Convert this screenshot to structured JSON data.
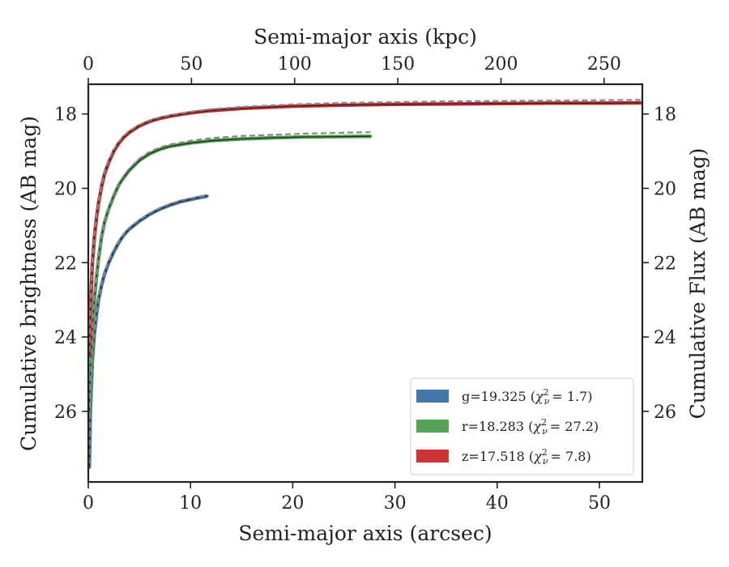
{
  "chart_data": {
    "type": "line",
    "xlabel_bottom": "Semi-major axis (arcsec)",
    "xlabel_top": "Semi-major axis (kpc)",
    "ylabel_left": "Cumulative brightness (AB mag)",
    "ylabel_right": "Cumulative Flux (AB mag)",
    "xlim": [
      0,
      54.2
    ],
    "ylim": [
      27.9,
      17.2
    ],
    "top_xlim": [
      0,
      268.5
    ],
    "x_ticks": [
      0,
      10,
      20,
      30,
      40,
      50
    ],
    "y_ticks": [
      18,
      20,
      22,
      24,
      26
    ],
    "top_ticks": [
      0,
      50,
      100,
      150,
      200,
      250
    ],
    "x_tick_labels": [
      "0",
      "10",
      "20",
      "30",
      "40",
      "50"
    ],
    "y_tick_labels": [
      "18",
      "20",
      "22",
      "24",
      "26"
    ],
    "top_tick_labels": [
      "0",
      "50",
      "100",
      "150",
      "200",
      "250"
    ],
    "legend_position": "lower-right",
    "legend": [
      {
        "prefix": "g=19.325 (",
        "chi": "1.7",
        "suffix": ")",
        "color": "#4477aa"
      },
      {
        "prefix": "r=18.283 (",
        "chi": "27.2",
        "suffix": ")",
        "color": "#55a355"
      },
      {
        "prefix": "z=17.518 (",
        "chi": "7.8",
        "suffix": ")",
        "color": "#cc3333"
      }
    ],
    "series": [
      {
        "color": "#4477aa",
        "x": [
          0.1,
          0.2,
          0.4,
          0.6,
          0.8,
          1.0,
          1.3,
          1.6,
          2.0,
          2.5,
          3.0,
          3.5,
          4.0,
          5.0,
          6.0,
          7.0,
          8.0,
          9.0,
          10.0,
          11.0,
          11.6
        ],
        "y": [
          27.5,
          26.0,
          24.6,
          23.9,
          23.4,
          23.0,
          22.6,
          22.3,
          22.0,
          21.7,
          21.45,
          21.25,
          21.1,
          20.88,
          20.7,
          20.56,
          20.45,
          20.36,
          20.3,
          20.24,
          20.21
        ],
        "model_x": [
          0.1,
          0.2,
          0.4,
          0.6,
          0.8,
          1.0,
          1.3,
          1.6,
          2.0,
          2.5,
          3.0,
          3.5,
          4.0,
          5.0,
          6.0,
          7.0,
          8.0,
          9.0,
          10.0,
          11.0,
          11.6
        ],
        "model_y": [
          27.4,
          25.9,
          24.5,
          23.85,
          23.35,
          22.95,
          22.55,
          22.25,
          21.95,
          21.65,
          21.42,
          21.22,
          21.06,
          20.85,
          20.67,
          20.53,
          20.42,
          20.33,
          20.27,
          20.22,
          20.19
        ]
      },
      {
        "color": "#55a355",
        "x": [
          0.1,
          0.2,
          0.4,
          0.6,
          0.8,
          1.0,
          1.3,
          1.6,
          2.0,
          2.5,
          3.0,
          3.5,
          4.0,
          5.0,
          6.0,
          7.0,
          8.0,
          10.0,
          12.0,
          15.0,
          18.0,
          21.0,
          24.0,
          27.6
        ],
        "y": [
          26.0,
          25.0,
          23.8,
          23.0,
          22.4,
          21.9,
          21.3,
          20.9,
          20.55,
          20.2,
          19.9,
          19.7,
          19.52,
          19.25,
          19.07,
          18.95,
          18.87,
          18.78,
          18.72,
          18.67,
          18.64,
          18.62,
          18.61,
          18.6
        ],
        "model_x": [
          0.1,
          0.2,
          0.4,
          0.6,
          0.8,
          1.0,
          1.3,
          1.6,
          2.0,
          2.5,
          3.0,
          3.5,
          4.0,
          5.0,
          6.0,
          7.0,
          8.0,
          10.0,
          12.0,
          15.0,
          18.0,
          21.0,
          24.0,
          27.6
        ],
        "model_y": [
          25.9,
          24.9,
          23.7,
          22.95,
          22.35,
          21.85,
          21.25,
          20.85,
          20.5,
          20.15,
          19.86,
          19.65,
          19.47,
          19.2,
          19.02,
          18.9,
          18.82,
          18.72,
          18.65,
          18.59,
          18.56,
          18.53,
          18.51,
          18.49
        ]
      },
      {
        "color": "#cc3333",
        "x": [
          0.1,
          0.2,
          0.4,
          0.6,
          0.8,
          1.0,
          1.3,
          1.6,
          2.0,
          2.5,
          3.0,
          3.5,
          4.0,
          5.0,
          6.0,
          7.0,
          8.0,
          10.0,
          12.0,
          15.0,
          20.0,
          25.0,
          30.0,
          35.0,
          40.0,
          45.0,
          50.0,
          54.0
        ],
        "y": [
          24.5,
          23.3,
          22.0,
          21.3,
          20.8,
          20.4,
          19.95,
          19.6,
          19.3,
          19.0,
          18.78,
          18.62,
          18.5,
          18.32,
          18.2,
          18.12,
          18.06,
          17.97,
          17.91,
          17.85,
          17.79,
          17.76,
          17.74,
          17.73,
          17.72,
          17.71,
          17.71,
          17.7
        ],
        "model_x": [
          0.1,
          0.2,
          0.4,
          0.6,
          0.8,
          1.0,
          1.3,
          1.6,
          2.0,
          2.5,
          3.0,
          3.5,
          4.0,
          5.0,
          6.0,
          7.0,
          8.0,
          10.0,
          12.0,
          15.0,
          20.0,
          25.0,
          30.0,
          35.0,
          40.0,
          45.0,
          50.0,
          54.0
        ],
        "model_y": [
          24.4,
          23.2,
          21.9,
          21.25,
          20.75,
          20.35,
          19.9,
          19.55,
          19.25,
          18.95,
          18.74,
          18.58,
          18.46,
          18.29,
          18.17,
          18.09,
          18.03,
          17.94,
          17.87,
          17.81,
          17.74,
          17.7,
          17.68,
          17.66,
          17.65,
          17.64,
          17.63,
          17.62
        ]
      }
    ]
  }
}
